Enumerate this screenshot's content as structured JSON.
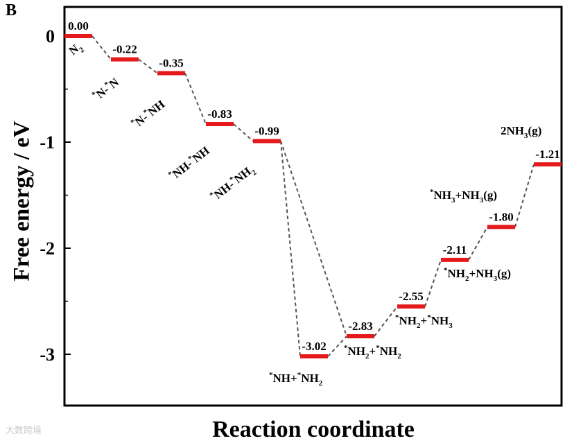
{
  "panel_label": "B",
  "watermark": "大数跨境",
  "colors": {
    "level": "#e41a1c",
    "connector": "#555555",
    "axis": "#000000"
  },
  "chart_data": {
    "type": "line",
    "title": "",
    "xlabel": "Reaction coordinate",
    "ylabel": "Free energy / eV",
    "ylim": [
      -3.5,
      0.25
    ],
    "yticks": [
      {
        "value": 0,
        "label": "0"
      },
      {
        "value": -1,
        "label": "-1"
      },
      {
        "value": -2,
        "label": "-2"
      },
      {
        "value": -3,
        "label": "-3"
      }
    ],
    "steps": [
      {
        "step": 1,
        "energy": 0.0,
        "value_label": "0.00",
        "species": "N2"
      },
      {
        "step": 2,
        "energy": -0.22,
        "value_label": "-0.22",
        "species": "*N-*N"
      },
      {
        "step": 3,
        "energy": -0.35,
        "value_label": "-0.35",
        "species": "*N-*NH"
      },
      {
        "step": 4,
        "energy": -0.83,
        "value_label": "-0.83",
        "species": "*NH-*NH"
      },
      {
        "step": 5,
        "energy": -0.99,
        "value_label": "-0.99",
        "species": "*NH-*NH2"
      },
      {
        "step": 6,
        "energy": -3.02,
        "value_label": "-3.02",
        "species": "*NH+*NH2"
      },
      {
        "step": 7,
        "energy": -2.83,
        "value_label": "-2.83",
        "species": "*NH2+*NH2"
      },
      {
        "step": 8,
        "energy": -2.55,
        "value_label": "-2.55",
        "species": "*NH2+*NH3"
      },
      {
        "step": 9,
        "energy": -2.11,
        "value_label": "-2.11",
        "species": "*NH2+NH3(g)"
      },
      {
        "step": 10,
        "energy": -1.8,
        "value_label": "-1.80",
        "species": "*NH3+NH3(g)"
      },
      {
        "step": 11,
        "energy": -1.21,
        "value_label": "-1.21",
        "species": "2NH3(g)"
      }
    ],
    "connections": [
      [
        1,
        2
      ],
      [
        2,
        3
      ],
      [
        3,
        4
      ],
      [
        4,
        5
      ],
      [
        5,
        6
      ],
      [
        5,
        7
      ],
      [
        6,
        7
      ],
      [
        7,
        8
      ],
      [
        8,
        9
      ],
      [
        9,
        10
      ],
      [
        10,
        11
      ]
    ]
  }
}
